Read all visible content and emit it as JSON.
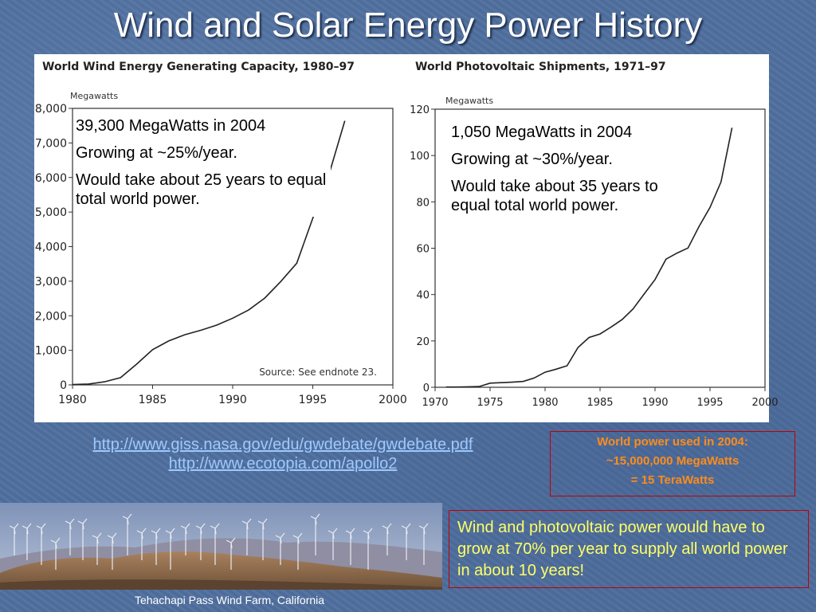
{
  "slide": {
    "title": "Wind and Solar Energy Power History"
  },
  "chart_data": [
    {
      "type": "line",
      "title": "World Wind Energy Generating Capacity, 1980–97",
      "ylabel": "Megawatts",
      "xlabel": "",
      "xlim": [
        1980,
        2000
      ],
      "ylim": [
        0,
        8000
      ],
      "x_ticks": [
        "1980",
        "1985",
        "1990",
        "1995",
        "2000"
      ],
      "y_ticks": [
        "0",
        "1,000",
        "2,000",
        "3,000",
        "4,000",
        "5,000",
        "6,000",
        "7,000",
        "8,000"
      ],
      "note": "Source: See endnote 23.",
      "series": [
        {
          "x": [
            1980,
            1981,
            1982,
            1983,
            1984,
            1985,
            1986,
            1987,
            1988,
            1989,
            1990,
            1991,
            1992,
            1993,
            1994,
            1995,
            1996,
            1997
          ],
          "values": [
            10,
            25,
            90,
            210,
            600,
            1020,
            1270,
            1450,
            1580,
            1730,
            1930,
            2170,
            2510,
            2990,
            3520,
            4820,
            6070,
            7640
          ]
        }
      ]
    },
    {
      "type": "line",
      "title": "World Photovoltaic Shipments, 1971–97",
      "ylabel": "Megawatts",
      "xlabel": "",
      "xlim": [
        1970,
        2000
      ],
      "ylim": [
        0,
        120
      ],
      "x_ticks": [
        "1970",
        "1975",
        "1980",
        "1985",
        "1990",
        "1995",
        "2000"
      ],
      "y_ticks": [
        "0",
        "20",
        "40",
        "60",
        "80",
        "100",
        "120"
      ],
      "series": [
        {
          "x": [
            1971,
            1972,
            1973,
            1974,
            1975,
            1976,
            1977,
            1978,
            1979,
            1980,
            1981,
            1982,
            1983,
            1984,
            1985,
            1986,
            1987,
            1988,
            1989,
            1990,
            1991,
            1992,
            1993,
            1994,
            1995,
            1996,
            1997
          ],
          "values": [
            0.1,
            0.1,
            0.2,
            0.3,
            1.8,
            2.0,
            2.2,
            2.5,
            4.0,
            6.5,
            7.8,
            9.3,
            17.2,
            21.5,
            23.0,
            26.0,
            29.2,
            33.8,
            40.2,
            46.5,
            55.3,
            57.9,
            60.1,
            69.4,
            77.6,
            88.6,
            112.0
          ]
        }
      ]
    }
  ],
  "annotations": {
    "wind": {
      "line1": "39,300 MegaWatts in 2004",
      "line2": "Growing at ~25%/year.",
      "line3": "Would take about 25 years to equal total world power."
    },
    "solar": {
      "line1": "1,050 MegaWatts in 2004",
      "line2": "Growing at ~30%/year.",
      "line3": "Would take about 35 years to equal total world power."
    }
  },
  "links": [
    "http://www.giss.nasa.gov/edu/gwdebate/gwdebate.pdf",
    "http://www.ecotopia.com/apollo2"
  ],
  "world_power": {
    "line1": "World power used in 2004:",
    "line2": "~15,000,000 MegaWatts",
    "line3": "= 15 TeraWatts"
  },
  "photo": {
    "caption": "Tehachapi Pass Wind Farm, California"
  },
  "growth_note": "Wind and photovoltaic power would have to grow at 70% per year to supply all world power in about 10 years!",
  "colors": {
    "link": "#9ec9ff",
    "box_border": "#c00000",
    "world_power_text": "#ff8c1a",
    "growth_text": "#ffff66"
  }
}
